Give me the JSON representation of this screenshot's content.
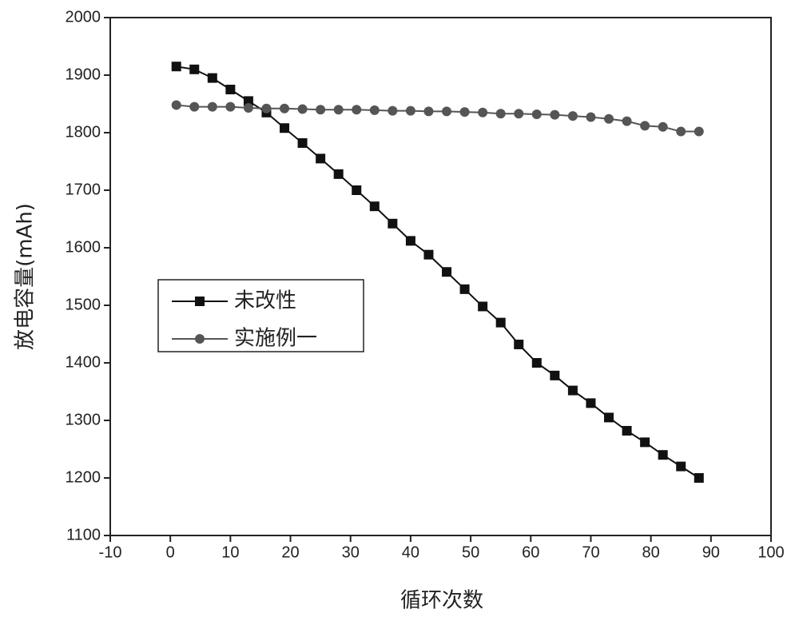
{
  "chart_data": {
    "type": "line",
    "x_label": "循环次数",
    "y_label": "放电容量(mAh)",
    "x": [
      1,
      4,
      7,
      10,
      13,
      16,
      19,
      22,
      25,
      28,
      31,
      34,
      37,
      40,
      43,
      46,
      49,
      52,
      55,
      58,
      61,
      64,
      67,
      70,
      73,
      76,
      79,
      82,
      85,
      88
    ],
    "series": [
      {
        "name": "未改性",
        "color": "#111111",
        "marker": "square",
        "values": [
          1915,
          1910,
          1895,
          1875,
          1855,
          1835,
          1808,
          1782,
          1755,
          1728,
          1700,
          1672,
          1642,
          1612,
          1588,
          1558,
          1528,
          1498,
          1470,
          1432,
          1400,
          1378,
          1352,
          1330,
          1305,
          1282,
          1262,
          1240,
          1220,
          1200
        ]
      },
      {
        "name": "实施例一",
        "color": "#555555",
        "marker": "circle",
        "values": [
          1848,
          1845,
          1845,
          1845,
          1843,
          1842,
          1842,
          1841,
          1840,
          1840,
          1840,
          1839,
          1838,
          1838,
          1837,
          1837,
          1836,
          1835,
          1833,
          1833,
          1832,
          1831,
          1829,
          1827,
          1824,
          1820,
          1812,
          1810,
          1802,
          1802
        ]
      }
    ],
    "xlim": [
      -10,
      100
    ],
    "xticks": [
      -10,
      0,
      10,
      20,
      30,
      40,
      50,
      60,
      70,
      80,
      90,
      100
    ],
    "ylim": [
      1100,
      2000
    ],
    "yticks": [
      1100,
      1200,
      1300,
      1400,
      1500,
      1600,
      1700,
      1800,
      1900,
      2000
    ],
    "grid": false,
    "legend": "center-left"
  }
}
